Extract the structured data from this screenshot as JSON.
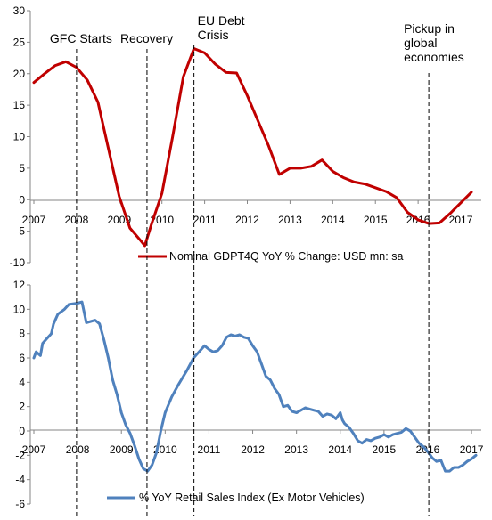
{
  "chart_data": [
    {
      "type": "line",
      "series": [
        {
          "name": "Nominal GDPT4Q YoY % Change: USD mn: sa",
          "color": "#c00000",
          "points": [
            [
              2007.0,
              18.6
            ],
            [
              2007.25,
              20.0
            ],
            [
              2007.5,
              21.3
            ],
            [
              2007.75,
              21.9
            ],
            [
              2008.0,
              21.0
            ],
            [
              2008.25,
              19.0
            ],
            [
              2008.5,
              15.5
            ],
            [
              2008.75,
              8.0
            ],
            [
              2009.0,
              0.5
            ],
            [
              2009.25,
              -4.5
            ],
            [
              2009.5,
              -6.5
            ],
            [
              2009.6,
              -7.3
            ],
            [
              2009.75,
              -4.0
            ],
            [
              2010.0,
              1.0
            ],
            [
              2010.25,
              10.0
            ],
            [
              2010.5,
              19.5
            ],
            [
              2010.75,
              24.0
            ],
            [
              2011.0,
              23.3
            ],
            [
              2011.25,
              21.5
            ],
            [
              2011.5,
              20.2
            ],
            [
              2011.75,
              20.1
            ],
            [
              2012.0,
              16.5
            ],
            [
              2012.25,
              12.5
            ],
            [
              2012.5,
              8.5
            ],
            [
              2012.75,
              4.0
            ],
            [
              2013.0,
              5.0
            ],
            [
              2013.25,
              5.0
            ],
            [
              2013.5,
              5.3
            ],
            [
              2013.75,
              6.3
            ],
            [
              2014.0,
              4.5
            ],
            [
              2014.25,
              3.5
            ],
            [
              2014.5,
              2.8
            ],
            [
              2014.75,
              2.5
            ],
            [
              2015.0,
              1.9
            ],
            [
              2015.25,
              1.3
            ],
            [
              2015.5,
              0.3
            ],
            [
              2015.75,
              -2.0
            ],
            [
              2016.0,
              -3.2
            ],
            [
              2016.25,
              -3.8
            ],
            [
              2016.5,
              -3.7
            ],
            [
              2016.75,
              -2.2
            ],
            [
              2017.0,
              -0.5
            ],
            [
              2017.25,
              1.2
            ]
          ]
        }
      ],
      "xlim": [
        2007,
        2017.25
      ],
      "ylim": [
        -10,
        30
      ],
      "x_ticks": [
        "2007",
        "2008",
        "2009",
        "2010",
        "2011",
        "2012",
        "2013",
        "2014",
        "2015",
        "2016",
        "2017"
      ],
      "y_ticks": [
        "-10",
        "-5",
        "0",
        "5",
        "10",
        "15",
        "20",
        "25",
        "30"
      ],
      "legend": "bottom",
      "grid": false
    },
    {
      "type": "line",
      "series": [
        {
          "name": "% YoY Retail Sales Index (Ex Motor Vehicles)",
          "color": "#4f81bd",
          "points": [
            [
              2007.0,
              6.0
            ],
            [
              2007.05,
              6.5
            ],
            [
              2007.15,
              6.2
            ],
            [
              2007.2,
              7.2
            ],
            [
              2007.3,
              7.6
            ],
            [
              2007.4,
              8.0
            ],
            [
              2007.45,
              8.8
            ],
            [
              2007.55,
              9.6
            ],
            [
              2007.7,
              10.0
            ],
            [
              2007.8,
              10.4
            ],
            [
              2008.0,
              10.5
            ],
            [
              2008.1,
              10.6
            ],
            [
              2008.2,
              8.9
            ],
            [
              2008.3,
              9.0
            ],
            [
              2008.4,
              9.1
            ],
            [
              2008.5,
              8.8
            ],
            [
              2008.6,
              7.5
            ],
            [
              2008.7,
              6.0
            ],
            [
              2008.8,
              4.2
            ],
            [
              2008.9,
              3.0
            ],
            [
              2009.0,
              1.5
            ],
            [
              2009.1,
              0.5
            ],
            [
              2009.2,
              -0.2
            ],
            [
              2009.3,
              -1.2
            ],
            [
              2009.4,
              -2.3
            ],
            [
              2009.5,
              -3.1
            ],
            [
              2009.6,
              -3.3
            ],
            [
              2009.7,
              -2.8
            ],
            [
              2009.8,
              -1.8
            ],
            [
              2009.9,
              0.0
            ],
            [
              2010.0,
              1.5
            ],
            [
              2010.15,
              2.8
            ],
            [
              2010.3,
              3.8
            ],
            [
              2010.5,
              5.0
            ],
            [
              2010.65,
              6.0
            ],
            [
              2010.8,
              6.6
            ],
            [
              2010.9,
              7.0
            ],
            [
              2011.0,
              6.7
            ],
            [
              2011.1,
              6.5
            ],
            [
              2011.2,
              6.6
            ],
            [
              2011.3,
              7.0
            ],
            [
              2011.4,
              7.7
            ],
            [
              2011.5,
              7.9
            ],
            [
              2011.6,
              7.8
            ],
            [
              2011.7,
              7.9
            ],
            [
              2011.8,
              7.7
            ],
            [
              2011.9,
              7.6
            ],
            [
              2012.0,
              7.0
            ],
            [
              2012.1,
              6.5
            ],
            [
              2012.2,
              5.5
            ],
            [
              2012.3,
              4.5
            ],
            [
              2012.4,
              4.2
            ],
            [
              2012.5,
              3.5
            ],
            [
              2012.6,
              3.0
            ],
            [
              2012.7,
              2.0
            ],
            [
              2012.8,
              2.1
            ],
            [
              2012.9,
              1.6
            ],
            [
              2013.0,
              1.5
            ],
            [
              2013.1,
              1.7
            ],
            [
              2013.2,
              1.9
            ],
            [
              2013.3,
              1.8
            ],
            [
              2013.4,
              1.7
            ],
            [
              2013.5,
              1.6
            ],
            [
              2013.6,
              1.2
            ],
            [
              2013.7,
              1.4
            ],
            [
              2013.8,
              1.3
            ],
            [
              2013.9,
              1.0
            ],
            [
              2014.0,
              1.5
            ],
            [
              2014.05,
              0.9
            ],
            [
              2014.1,
              0.6
            ],
            [
              2014.2,
              0.3
            ],
            [
              2014.3,
              -0.2
            ],
            [
              2014.4,
              -0.8
            ],
            [
              2014.5,
              -1.0
            ],
            [
              2014.6,
              -0.7
            ],
            [
              2014.7,
              -0.8
            ],
            [
              2014.8,
              -0.6
            ],
            [
              2014.9,
              -0.5
            ],
            [
              2015.0,
              -0.3
            ],
            [
              2015.1,
              -0.5
            ],
            [
              2015.2,
              -0.3
            ],
            [
              2015.3,
              -0.2
            ],
            [
              2015.4,
              -0.1
            ],
            [
              2015.5,
              0.2
            ],
            [
              2015.6,
              0.0
            ],
            [
              2015.7,
              -0.5
            ],
            [
              2015.8,
              -1.0
            ],
            [
              2015.9,
              -1.3
            ],
            [
              2016.0,
              -1.7
            ],
            [
              2016.1,
              -2.2
            ],
            [
              2016.2,
              -2.5
            ],
            [
              2016.3,
              -2.4
            ],
            [
              2016.4,
              -3.3
            ],
            [
              2016.5,
              -3.3
            ],
            [
              2016.6,
              -3.0
            ],
            [
              2016.7,
              -3.0
            ],
            [
              2016.8,
              -2.8
            ],
            [
              2016.9,
              -2.5
            ],
            [
              2017.0,
              -2.3
            ],
            [
              2017.1,
              -2.0
            ]
          ]
        }
      ],
      "xlim": [
        2007,
        2017.1
      ],
      "ylim": [
        -6,
        12
      ],
      "x_ticks": [
        "2007",
        "2008",
        "2009",
        "2010",
        "2011",
        "2012",
        "2013",
        "2014",
        "2015",
        "2016",
        "2017"
      ],
      "y_ticks": [
        "-6",
        "-4",
        "-2",
        "0",
        "2",
        "4",
        "6",
        "8",
        "10",
        "12"
      ],
      "legend": "bottom",
      "grid": false
    }
  ],
  "annotations": [
    {
      "lines": [
        "GFC Starts"
      ],
      "x": 2008.0
    },
    {
      "lines": [
        "Recovery"
      ],
      "x": 2009.65
    },
    {
      "lines": [
        "EU Debt",
        "Crisis"
      ],
      "x": 2010.75
    },
    {
      "lines": [
        "Pickup in",
        "global",
        "economies"
      ],
      "x": 2016.25
    }
  ]
}
